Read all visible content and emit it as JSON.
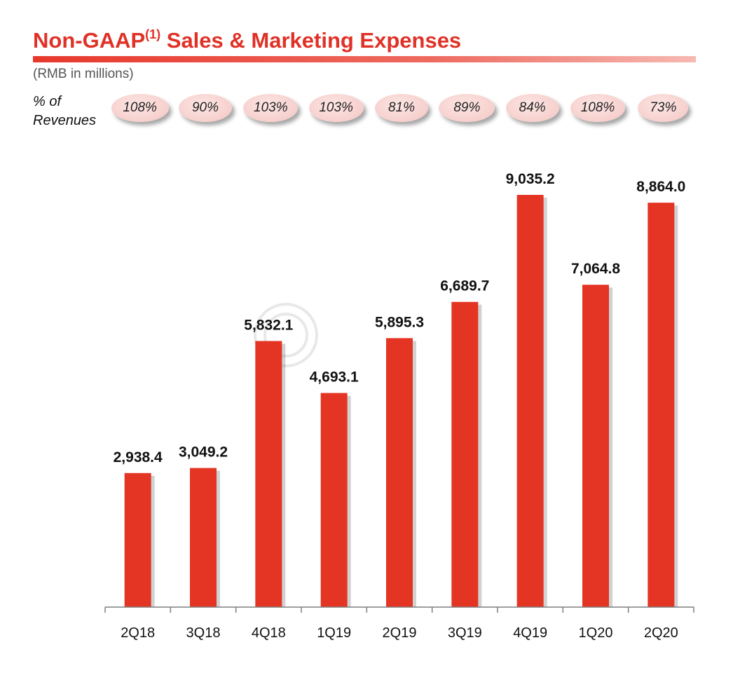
{
  "title": {
    "main": "Non-GAAP",
    "sup": "(1)",
    "rest": " Sales & Marketing Expenses"
  },
  "subtitle": "(RMB in millions)",
  "pct_row": {
    "label_line1": "% of",
    "label_line2": "Revenues"
  },
  "colors": {
    "accent": "#e03127",
    "bar": "#e43423",
    "pill": "#f6cfcc"
  },
  "chart_data": {
    "type": "bar",
    "title": "Non-GAAP(1) Sales & Marketing Expenses",
    "ylabel": "",
    "xlabel": "",
    "unit": "(RMB in millions)",
    "categories": [
      "2Q18",
      "3Q18",
      "4Q18",
      "1Q19",
      "2Q19",
      "3Q19",
      "4Q19",
      "1Q20",
      "2Q20"
    ],
    "values": [
      2938.4,
      3049.2,
      5832.1,
      4693.1,
      5895.3,
      6689.7,
      9035.2,
      7064.8,
      8864.0
    ],
    "value_labels": [
      "2,938.4",
      "3,049.2",
      "5,832.1",
      "4,693.1",
      "5,895.3",
      "6,689.7",
      "9,035.2",
      "7,064.8",
      "8,864.0"
    ],
    "pct_of_revenues": [
      "108%",
      "90%",
      "103%",
      "103%",
      "81%",
      "89%",
      "84%",
      "108%",
      "73%"
    ],
    "ylim": [
      0,
      9035.2
    ],
    "grid": false,
    "legend": "none"
  }
}
